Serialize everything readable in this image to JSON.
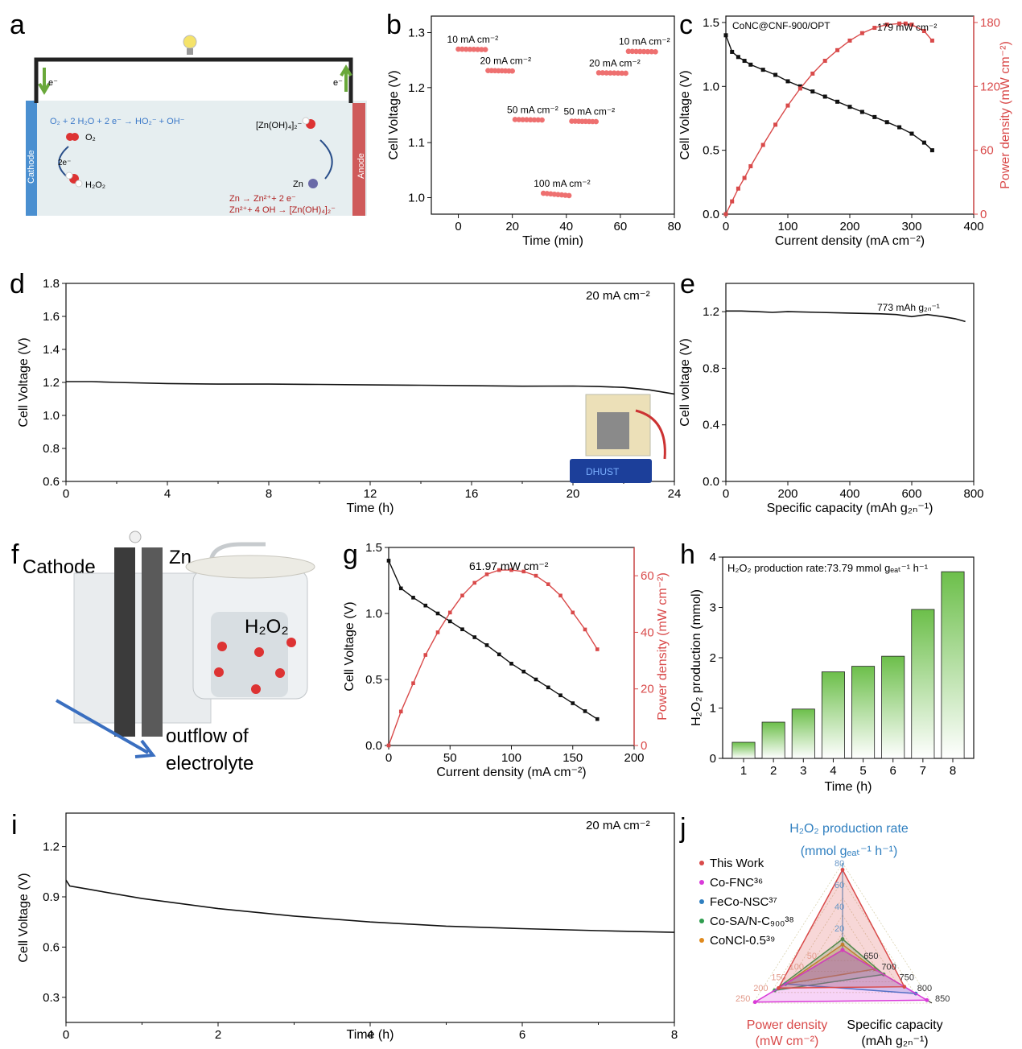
{
  "colors": {
    "black": "#111111",
    "red": "#d94a4a",
    "red_dot": "#ee7070",
    "green": "#6cbf4a",
    "blue": "#2f7fc0",
    "magenta": "#d93ad9",
    "orange": "#e08a1e",
    "cathode": "#4a8fd0",
    "anode": "#cf5a5a",
    "electrolyte": "#e6eef0"
  },
  "panels": {
    "a": {
      "label": "a",
      "cathode_label": "Cathode",
      "anode_label": "Anode",
      "e_left": "e⁻",
      "e_right": "e⁻",
      "eq_cathode": "O₂ + 2 H₂O + 2 e⁻ → HO₂⁻ + OH⁻",
      "o2": "O₂",
      "two_e": "2e⁻",
      "h2o2": "H₂O₂",
      "zn_complex": "[Zn(OH)₄]₂⁻",
      "zn": "Zn",
      "eq_anode_1": "Zn → Zn²⁺+ 2 e⁻",
      "eq_anode_2": "Zn²⁺+ 4 OH → [Zn(OH)₄]₂⁻"
    },
    "f": {
      "label": "f",
      "cathode_label": "Cathode",
      "zn_label": "Zn",
      "h2o2_label": "H₂O₂",
      "outflow_1": "outflow of",
      "outflow_2": "electrolyte"
    },
    "d_inset": {
      "display": "DHUST"
    }
  },
  "chart_data": [
    {
      "panel": "b",
      "label": "b",
      "type": "scatter",
      "xlabel": "Time (min)",
      "ylabel": "Cell Voltage (V)",
      "xlim": [
        -10,
        80
      ],
      "ylim": [
        0.97,
        1.33
      ],
      "xticks": [
        0,
        20,
        40,
        60,
        80
      ],
      "yticks": [
        1.0,
        1.1,
        1.2,
        1.3
      ],
      "xtick_labels": [
        "0",
        "20",
        "40",
        "60",
        "80"
      ],
      "ytick_labels": [
        "1.0",
        "1.1",
        "1.2",
        "1.3"
      ],
      "segments": [
        {
          "label": "10 mA cm⁻²",
          "x_start": 0,
          "x_end": 10,
          "y": 1.27
        },
        {
          "label": "20 mA cm⁻²",
          "x_start": 11,
          "x_end": 20,
          "y": 1.231
        },
        {
          "label": "50 mA cm⁻²",
          "x_start": 21,
          "x_end": 31,
          "y": 1.142
        },
        {
          "label": "100 mA cm⁻²",
          "x_start": 31.5,
          "x_end": 41,
          "y": 1.008
        },
        {
          "label": "50 mA cm⁻²",
          "x_start": 42,
          "x_end": 51,
          "y": 1.139
        },
        {
          "label": "20 mA cm⁻²",
          "x_start": 52,
          "x_end": 62,
          "y": 1.227
        },
        {
          "label": "10 mA cm⁻²",
          "x_start": 63,
          "x_end": 73,
          "y": 1.266
        }
      ]
    },
    {
      "panel": "c",
      "label": "c",
      "type": "line",
      "title": "CoNC@CNF-900/OPT",
      "xlabel": "Current density (mA cm⁻²)",
      "ylabel": "Cell Voltage (V)",
      "y2label": "Power density (mW cm⁻²)",
      "xlim": [
        0,
        400
      ],
      "ylim": [
        0,
        1.55
      ],
      "y2lim": [
        0,
        186
      ],
      "xticks": [
        0,
        100,
        200,
        300,
        400
      ],
      "yticks": [
        0,
        0.5,
        1.0,
        1.5
      ],
      "y2ticks": [
        0,
        60,
        120,
        180
      ],
      "xtick_labels": [
        "0",
        "100",
        "200",
        "300",
        "400"
      ],
      "ytick_labels": [
        "0.0",
        "0.5",
        "1.0",
        "1.5"
      ],
      "y2tick_labels": [
        "0",
        "60",
        "120",
        "180"
      ],
      "annotation": "179 mW cm⁻²",
      "series": [
        {
          "axis": "left",
          "marker": "square",
          "color": "#111111",
          "x": [
            0,
            10,
            20,
            30,
            40,
            60,
            80,
            100,
            120,
            140,
            160,
            180,
            200,
            220,
            240,
            260,
            280,
            300,
            320,
            333
          ],
          "y": [
            1.4,
            1.27,
            1.23,
            1.2,
            1.17,
            1.13,
            1.09,
            1.04,
            1.0,
            0.96,
            0.92,
            0.88,
            0.84,
            0.8,
            0.76,
            0.72,
            0.68,
            0.63,
            0.56,
            0.5
          ]
        },
        {
          "axis": "right",
          "marker": "square",
          "color": "#d94a4a",
          "x": [
            0,
            10,
            20,
            30,
            40,
            60,
            80,
            100,
            120,
            140,
            160,
            180,
            200,
            220,
            240,
            260,
            280,
            290,
            300,
            320,
            333
          ],
          "y": [
            0,
            12,
            24,
            34,
            45,
            65,
            84,
            102,
            118,
            132,
            144,
            154,
            163,
            170,
            175,
            178,
            179,
            179,
            178,
            172,
            163
          ]
        }
      ]
    },
    {
      "panel": "d",
      "label": "d",
      "type": "line",
      "xlabel": "Time (h)",
      "ylabel": "Cell Voltage (V)",
      "xlim": [
        0,
        24
      ],
      "ylim": [
        0.6,
        1.8
      ],
      "xticks": [
        0,
        4,
        8,
        12,
        16,
        20,
        24
      ],
      "yticks": [
        0.6,
        0.8,
        1.0,
        1.2,
        1.4,
        1.6,
        1.8
      ],
      "xtick_labels": [
        "0",
        "4",
        "8",
        "12",
        "16",
        "20",
        "24"
      ],
      "ytick_labels": [
        "0.6",
        "0.8",
        "1.0",
        "1.2",
        "1.4",
        "1.6",
        "1.8"
      ],
      "annotation": "20 mA cm⁻²",
      "series": [
        {
          "color": "#111111",
          "x": [
            0,
            1,
            2,
            4,
            6,
            8,
            10,
            12,
            14,
            16,
            18,
            20,
            21,
            22,
            23,
            24
          ],
          "y": [
            1.205,
            1.205,
            1.2,
            1.193,
            1.19,
            1.19,
            1.188,
            1.185,
            1.183,
            1.18,
            1.177,
            1.178,
            1.175,
            1.17,
            1.155,
            1.13
          ]
        }
      ]
    },
    {
      "panel": "e",
      "label": "e",
      "type": "line",
      "xlabel": "Specific capacity (mAh g₂ₙ⁻¹)",
      "ylabel": "Cell voltage (V)",
      "xlim": [
        0,
        800
      ],
      "ylim": [
        0,
        1.4
      ],
      "xticks": [
        0,
        200,
        400,
        600,
        800
      ],
      "yticks": [
        0.0,
        0.4,
        0.8,
        1.2
      ],
      "xtick_labels": [
        "0",
        "200",
        "400",
        "600",
        "800"
      ],
      "ytick_labels": [
        "0.0",
        "0.4",
        "0.8",
        "1.2"
      ],
      "annotation": "773 mAh g₂ₙ⁻¹",
      "series": [
        {
          "color": "#111111",
          "x": [
            0,
            50,
            100,
            150,
            200,
            300,
            400,
            500,
            550,
            600,
            650,
            700,
            740,
            773
          ],
          "y": [
            1.205,
            1.205,
            1.2,
            1.195,
            1.2,
            1.195,
            1.19,
            1.185,
            1.18,
            1.165,
            1.18,
            1.165,
            1.15,
            1.13
          ]
        }
      ]
    },
    {
      "panel": "g",
      "label": "g",
      "type": "line",
      "xlabel": "Current density (mA cm⁻²)",
      "ylabel": "Cell Voltage (V)",
      "y2label": "Power density (mW cm⁻²)",
      "xlim": [
        0,
        200
      ],
      "ylim": [
        0,
        1.5
      ],
      "y2lim": [
        0,
        70
      ],
      "xticks": [
        0,
        50,
        100,
        150,
        200
      ],
      "yticks": [
        0,
        0.5,
        1.0,
        1.5
      ],
      "y2ticks": [
        0,
        20,
        40,
        60
      ],
      "xtick_labels": [
        "0",
        "50",
        "100",
        "150",
        "200"
      ],
      "ytick_labels": [
        "0.0",
        "0.5",
        "1.0",
        "1.5"
      ],
      "y2tick_labels": [
        "0",
        "20",
        "40",
        "60"
      ],
      "annotation": "61.97 mW cm⁻²",
      "series": [
        {
          "axis": "left",
          "marker": "square",
          "color": "#111111",
          "x": [
            0,
            10,
            20,
            30,
            40,
            50,
            60,
            70,
            80,
            90,
            100,
            110,
            120,
            130,
            140,
            150,
            160,
            170
          ],
          "y": [
            1.4,
            1.19,
            1.12,
            1.06,
            1.0,
            0.94,
            0.88,
            0.82,
            0.76,
            0.69,
            0.62,
            0.56,
            0.5,
            0.44,
            0.38,
            0.32,
            0.26,
            0.2
          ]
        },
        {
          "axis": "right",
          "marker": "square",
          "color": "#d94a4a",
          "x": [
            0,
            10,
            20,
            30,
            40,
            50,
            60,
            70,
            80,
            90,
            100,
            110,
            120,
            130,
            140,
            150,
            160,
            170
          ],
          "y": [
            0,
            12,
            22,
            32,
            40,
            47,
            53,
            57.5,
            60.5,
            62,
            62,
            61.5,
            60,
            57,
            53,
            47,
            41,
            34
          ]
        }
      ]
    },
    {
      "panel": "h",
      "label": "h",
      "type": "bar",
      "title": "H₂O₂ production rate:73.79 mmol gₑₐₜ⁻¹ h⁻¹",
      "xlabel": "Time (h)",
      "ylabel": "H₂O₂ production (mmol)",
      "categories": [
        "1",
        "2",
        "3",
        "4",
        "5",
        "6",
        "7",
        "8"
      ],
      "values": [
        0.32,
        0.72,
        0.98,
        1.72,
        1.83,
        2.03,
        2.96,
        3.71
      ],
      "ylim": [
        0,
        4
      ],
      "yticks": [
        0,
        1,
        2,
        3,
        4
      ],
      "ytick_labels": [
        "0",
        "1",
        "2",
        "3",
        "4"
      ]
    },
    {
      "panel": "i",
      "label": "i",
      "type": "line",
      "xlabel": "Time (h)",
      "ylabel": "Cell Voltage (V)",
      "xlim": [
        0,
        8
      ],
      "ylim": [
        0.15,
        1.4
      ],
      "xticks": [
        0,
        2,
        4,
        6,
        8
      ],
      "yticks": [
        0.3,
        0.6,
        0.9,
        1.2
      ],
      "xtick_labels": [
        "0",
        "2",
        "4",
        "6",
        "8"
      ],
      "ytick_labels": [
        "0.3",
        "0.6",
        "0.9",
        "1.2"
      ],
      "annotation": "20 mA cm⁻²",
      "series": [
        {
          "color": "#111111",
          "x": [
            0,
            0.05,
            0.3,
            1,
            2,
            3,
            4,
            5,
            6,
            7,
            8
          ],
          "y": [
            1.0,
            0.965,
            0.945,
            0.89,
            0.83,
            0.785,
            0.75,
            0.725,
            0.71,
            0.698,
            0.688
          ]
        }
      ]
    },
    {
      "panel": "j",
      "label": "j",
      "type": "radar",
      "axes": [
        {
          "name_1": "H₂O₂ production rate",
          "name_2": "(mmol gₑₐₜ⁻¹ h⁻¹)",
          "range": [
            0,
            80
          ],
          "ticks": [
            "20",
            "40",
            "60",
            "80"
          ],
          "color": "#2f7fc0"
        },
        {
          "name_1": "Specific capacity",
          "name_2": "(mAh g₂ₙ⁻¹)",
          "range": [
            600,
            850
          ],
          "ticks": [
            "650",
            "700",
            "750",
            "800",
            "850"
          ],
          "color": "#111111"
        },
        {
          "name_1": "Power density",
          "name_2": "(mW cm⁻²)",
          "range": [
            0,
            250
          ],
          "ticks": [
            "50",
            "100",
            "150",
            "200",
            "250"
          ],
          "color": "#d94a4a"
        }
      ],
      "series": [
        {
          "name": "This Work",
          "color": "#d94a4a",
          "values": [
            73.79,
            773,
            179
          ]
        },
        {
          "name": "Co-FNC³⁶",
          "color": "#d93ad9",
          "values": [
            0,
            836,
            245
          ]
        },
        {
          "name": "FeCo-NSC³⁷",
          "color": "#2f7fc0",
          "values": [
            0,
            805,
            160
          ]
        },
        {
          "name": "Co-SA/N-C₉₀₀³⁸",
          "color": "#2f9d4f",
          "values": [
            10,
            715,
            190
          ]
        },
        {
          "name": "CoNCl-0.5³⁹",
          "color": "#e08a1e",
          "values": [
            5,
            690,
            160
          ]
        }
      ]
    }
  ]
}
